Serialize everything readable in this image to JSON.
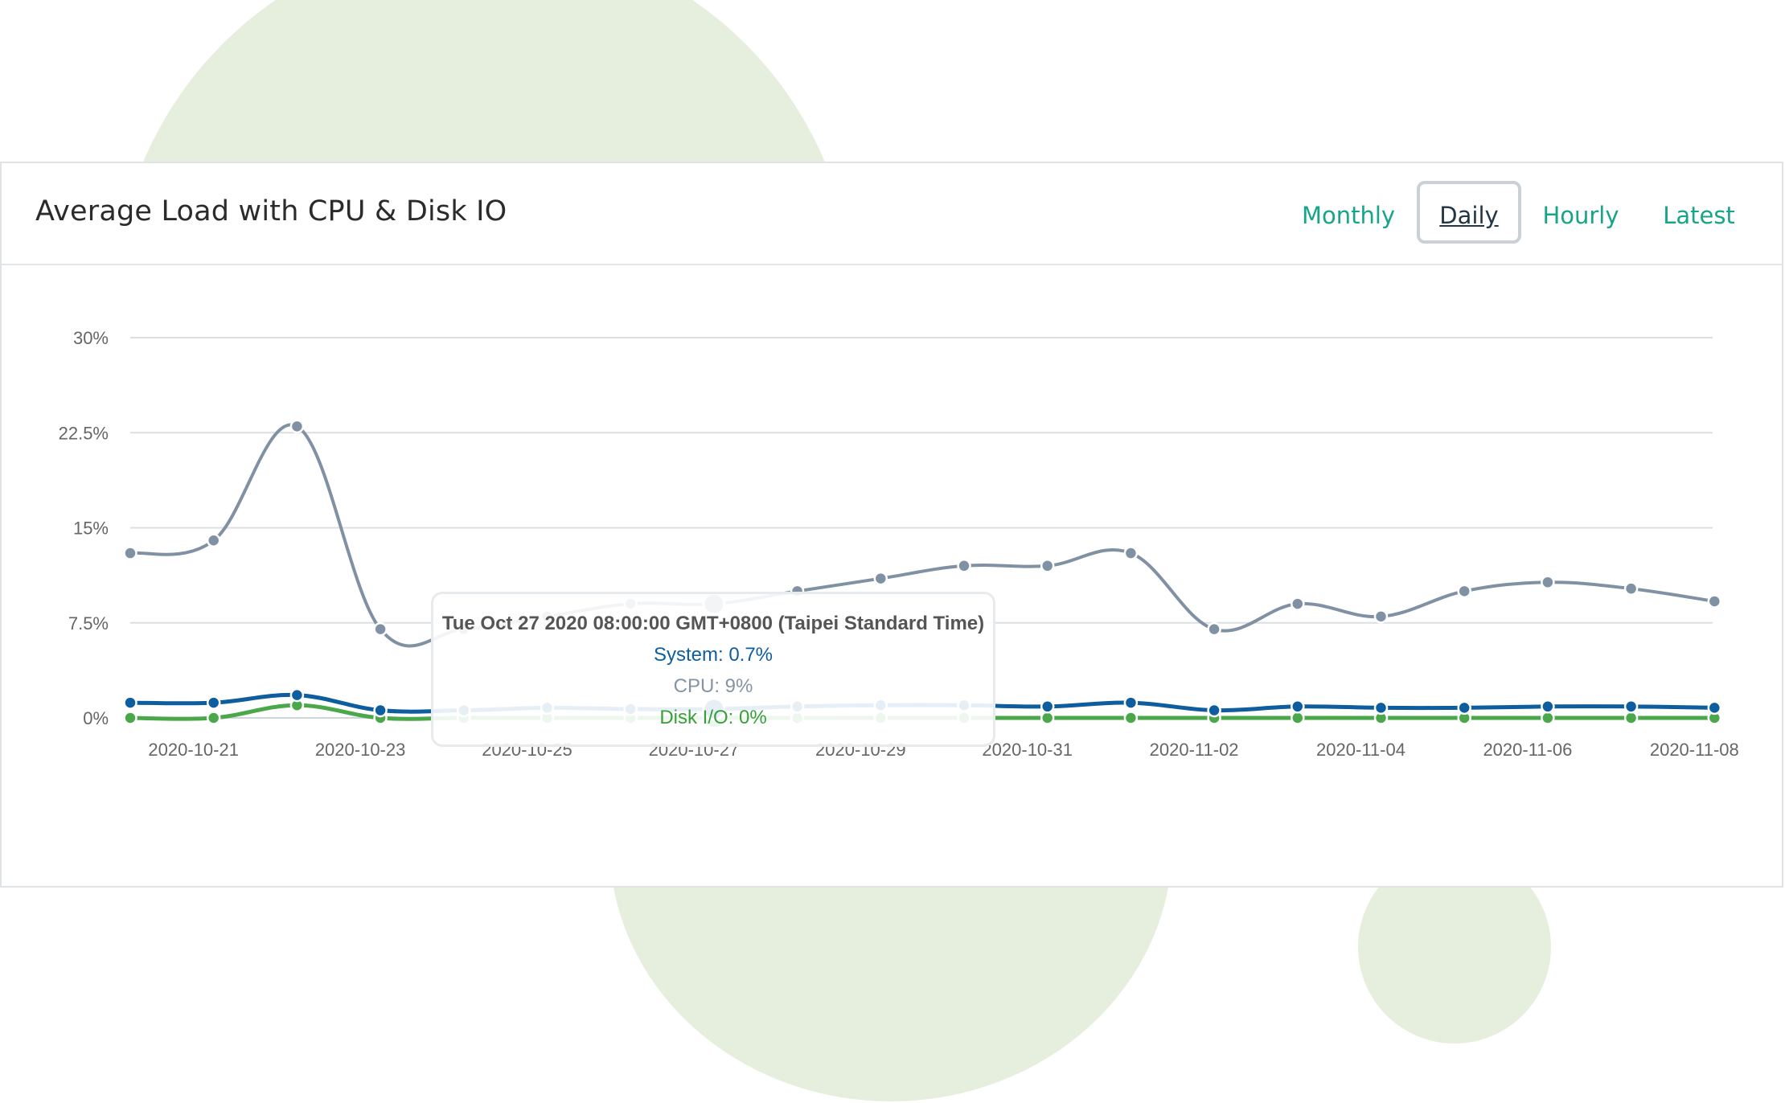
{
  "header": {
    "title": "Average Load with CPU & Disk IO",
    "periods": [
      {
        "label": "Monthly",
        "active": false
      },
      {
        "label": "Daily",
        "active": true
      },
      {
        "label": "Hourly",
        "active": false
      },
      {
        "label": "Latest",
        "active": false
      }
    ]
  },
  "tooltip": {
    "title": "Tue Oct 27 2020 08:00:00 GMT+0800 (Taipei Standard Time)",
    "system": "System: 0.7%",
    "cpu": "CPU: 9%",
    "disk": "Disk I/O: 0%"
  },
  "colors": {
    "system": "#0e5d9e",
    "cpu": "#7f91a3",
    "disk": "#4aa84a",
    "accent": "#17a589",
    "background_shape": "#e6efdd"
  },
  "chart_data": {
    "type": "line",
    "x": [
      "2020-10-20",
      "2020-10-21",
      "2020-10-22",
      "2020-10-23",
      "2020-10-24",
      "2020-10-25",
      "2020-10-26",
      "2020-10-27",
      "2020-10-28",
      "2020-10-29",
      "2020-10-30",
      "2020-10-31",
      "2020-11-01",
      "2020-11-02",
      "2020-11-03",
      "2020-11-04",
      "2020-11-05",
      "2020-11-06",
      "2020-11-07",
      "2020-11-08"
    ],
    "xticks": [
      "2020-10-21",
      "2020-10-23",
      "2020-10-25",
      "2020-10-27",
      "2020-10-29",
      "2020-10-31",
      "2020-11-02",
      "2020-11-04",
      "2020-11-06",
      "2020-11-08"
    ],
    "yticks": [
      "0%",
      "7.5%",
      "15%",
      "22.5%",
      "30%"
    ],
    "ylim": [
      0,
      30
    ],
    "grid": true,
    "highlight_index": 7,
    "series": [
      {
        "name": "CPU",
        "values": [
          13,
          14,
          23,
          7,
          7,
          8,
          9,
          9,
          10,
          11,
          12,
          12,
          13,
          7,
          9,
          8,
          10,
          10.7,
          10.2,
          9.2
        ]
      },
      {
        "name": "System",
        "values": [
          1.2,
          1.2,
          1.8,
          0.6,
          0.6,
          0.8,
          0.7,
          0.7,
          0.9,
          1.0,
          1.0,
          0.9,
          1.2,
          0.6,
          0.9,
          0.8,
          0.8,
          0.9,
          0.9,
          0.8
        ]
      },
      {
        "name": "Disk I/O",
        "values": [
          0,
          0,
          1.0,
          0,
          0,
          0,
          0,
          0,
          0,
          0,
          0,
          0,
          0,
          0,
          0,
          0,
          0,
          0,
          0,
          0
        ]
      }
    ]
  }
}
